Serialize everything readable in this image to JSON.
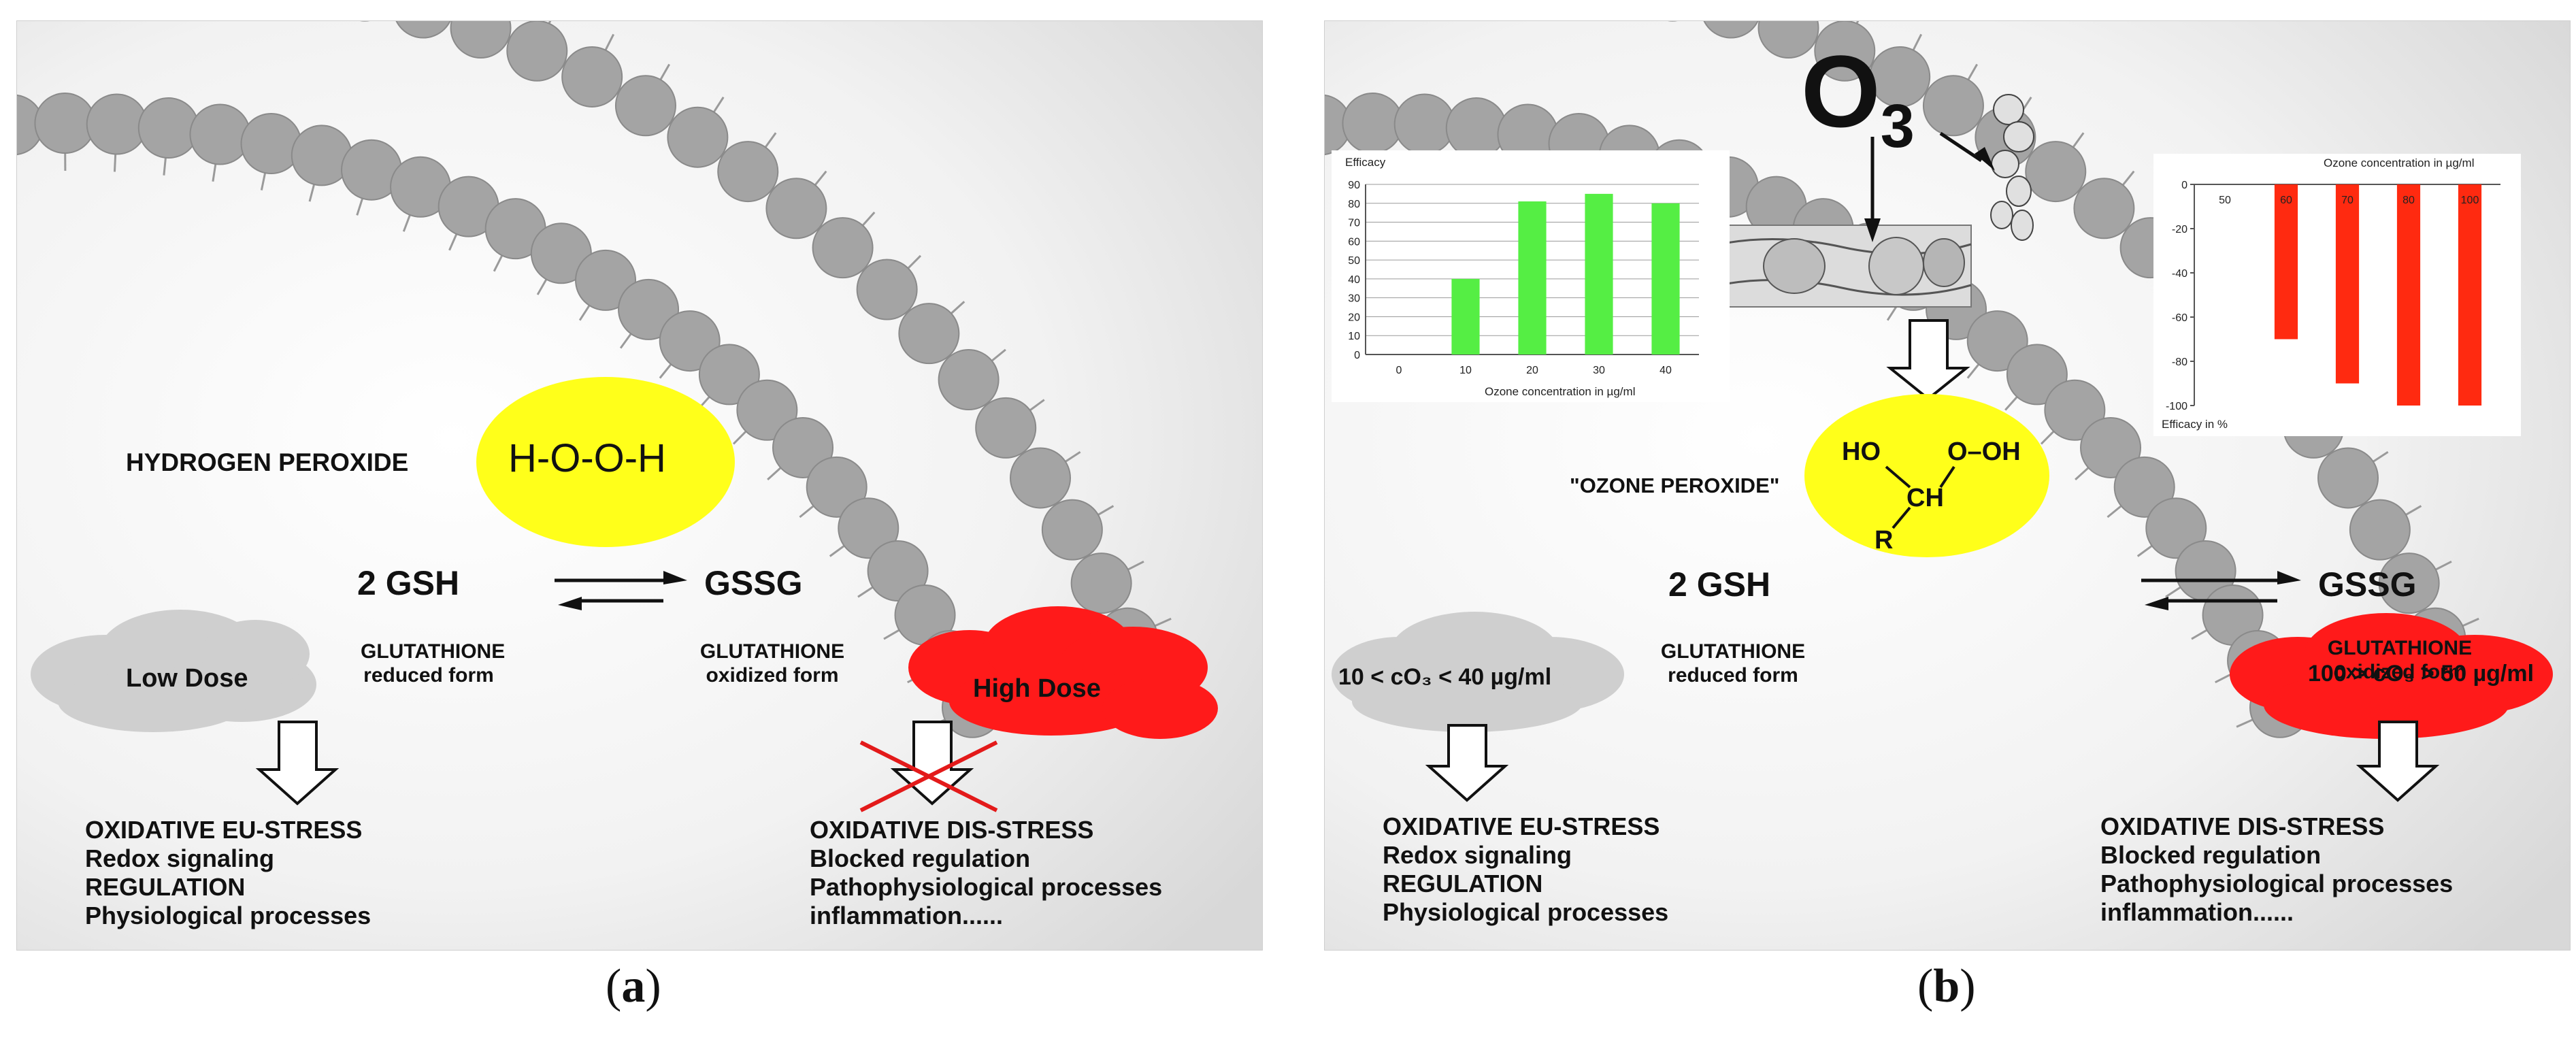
{
  "panel_a": {
    "hydrogen_peroxide_label": "HYDROGEN PEROXIDE",
    "formula": "H-O-O-H",
    "gsh": "2 GSH",
    "gssg": "GSSG",
    "glutathione_reduced": [
      "GLUTATHIONE",
      "reduced form"
    ],
    "glutathione_oxidized": [
      "GLUTATHIONE",
      "oxidized form"
    ],
    "low_dose": "Low Dose",
    "high_dose": "High Dose",
    "eustress": [
      "OXIDATIVE EU-STRESS",
      "Redox signaling",
      "REGULATION",
      "Physiological processes"
    ],
    "disstress": [
      "OXIDATIVE DIS-STRESS",
      "Blocked regulation",
      "Pathophysiological processes",
      "inflammation......"
    ],
    "caption": "a"
  },
  "panel_b": {
    "ozone": "O",
    "ozone_sub": "3",
    "ozone_peroxide_label": "\"OZONE PEROXIDE\"",
    "molecule": {
      "ho": "HO",
      "ooh": "O–OH",
      "ch": "CH",
      "r": "R"
    },
    "gsh": "2 GSH",
    "gssg": "GSSG",
    "glutathione_reduced": [
      "GLUTATHIONE",
      "reduced form"
    ],
    "glutathione_oxidized": [
      "GLUTATHIONE",
      "oxidized form"
    ],
    "low_range": "10 < cO₃ < 40 µg/ml",
    "high_range": "100 > cO₃ > 50 µg/ml",
    "eustress": [
      "OXIDATIVE EU-STRESS",
      "Redox signaling",
      "REGULATION",
      "Physiological processes"
    ],
    "disstress": [
      "OXIDATIVE DIS-STRESS",
      "Blocked regulation",
      "Pathophysiological processes",
      "inflammation......"
    ],
    "caption": "b"
  },
  "chart_data": [
    {
      "type": "bar",
      "title": "Efficacy",
      "xlabel": "Ozone concentration in µg/ml",
      "categories": [
        "0",
        "10",
        "20",
        "30",
        "40"
      ],
      "values": [
        0,
        40,
        81,
        85,
        80
      ],
      "ylim": [
        0,
        90
      ],
      "yticks": [
        0,
        10,
        20,
        30,
        40,
        50,
        60,
        70,
        80,
        90
      ],
      "grid": true,
      "color": "#55ee44"
    },
    {
      "type": "bar",
      "title": "Ozone concentration in µg/ml",
      "ylabel": "Efficacy in %",
      "categories": [
        "50",
        "60",
        "70",
        "80",
        "100"
      ],
      "values": [
        0,
        -70,
        -90,
        -100,
        -100
      ],
      "ylim": [
        -100,
        0
      ],
      "yticks": [
        0,
        -20,
        -40,
        -60,
        -80,
        -100
      ],
      "grid": false,
      "color": "#ff2a10"
    }
  ]
}
